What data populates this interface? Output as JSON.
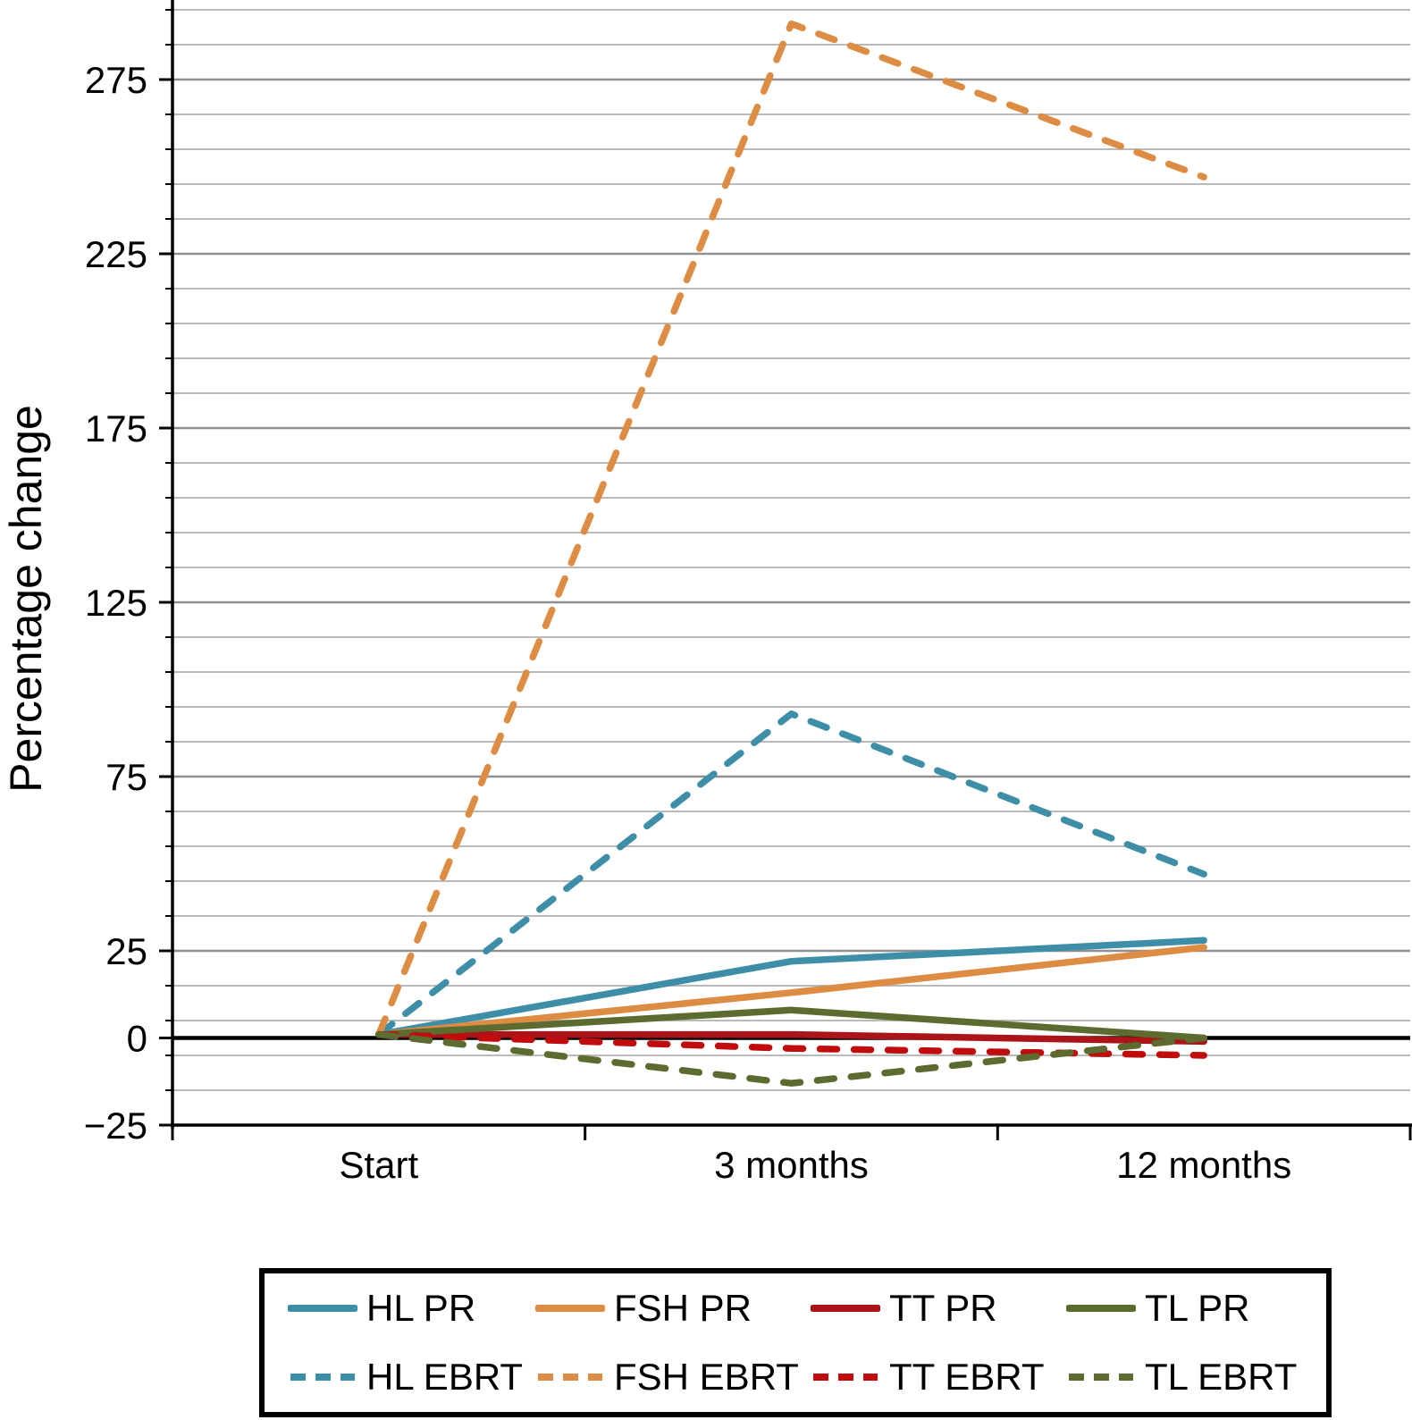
{
  "chart_data": {
    "type": "line",
    "title": "",
    "xlabel": "",
    "ylabel": "Percentage change",
    "categories": [
      "Start",
      "3 months",
      "12 months"
    ],
    "yticks": [
      -25,
      0,
      25,
      75,
      125,
      175,
      225,
      275
    ],
    "ylim": [
      -25,
      300
    ],
    "grid": "horizontal",
    "gridlines": {
      "minor_start": -25,
      "minor_end": 295,
      "step": 10,
      "major_values": [
        25,
        75,
        125,
        175,
        225,
        275
      ],
      "minor_color": "#b0b0b0",
      "major_color": "#8f8f8f"
    },
    "zero_line_color": "#000000",
    "legend_position": "bottom",
    "series": [
      {
        "name": "HL PR",
        "style": "solid",
        "color": "#3E8EA8",
        "values": [
          1,
          22,
          28
        ]
      },
      {
        "name": "FSH PR",
        "style": "solid",
        "color": "#DD8C44",
        "values": [
          1,
          13,
          26
        ]
      },
      {
        "name": "TT PR",
        "style": "solid",
        "color": "#AB1418",
        "values": [
          1,
          1,
          -1
        ]
      },
      {
        "name": "TL PR",
        "style": "solid",
        "color": "#5C6B2F",
        "values": [
          1,
          8,
          0
        ]
      },
      {
        "name": "HL EBRT",
        "style": "dashed",
        "color": "#3E8EA8",
        "values": [
          1,
          93,
          47
        ]
      },
      {
        "name": "FSH EBRT",
        "style": "dashed",
        "color": "#DD8C44",
        "values": [
          1,
          291,
          247
        ]
      },
      {
        "name": "TT EBRT",
        "style": "dashed",
        "color": "#C00C0C",
        "values": [
          1,
          -3,
          -5
        ]
      },
      {
        "name": "TL EBRT",
        "style": "dashed",
        "color": "#5C6B2F",
        "values": [
          1,
          -13,
          0
        ]
      }
    ]
  }
}
